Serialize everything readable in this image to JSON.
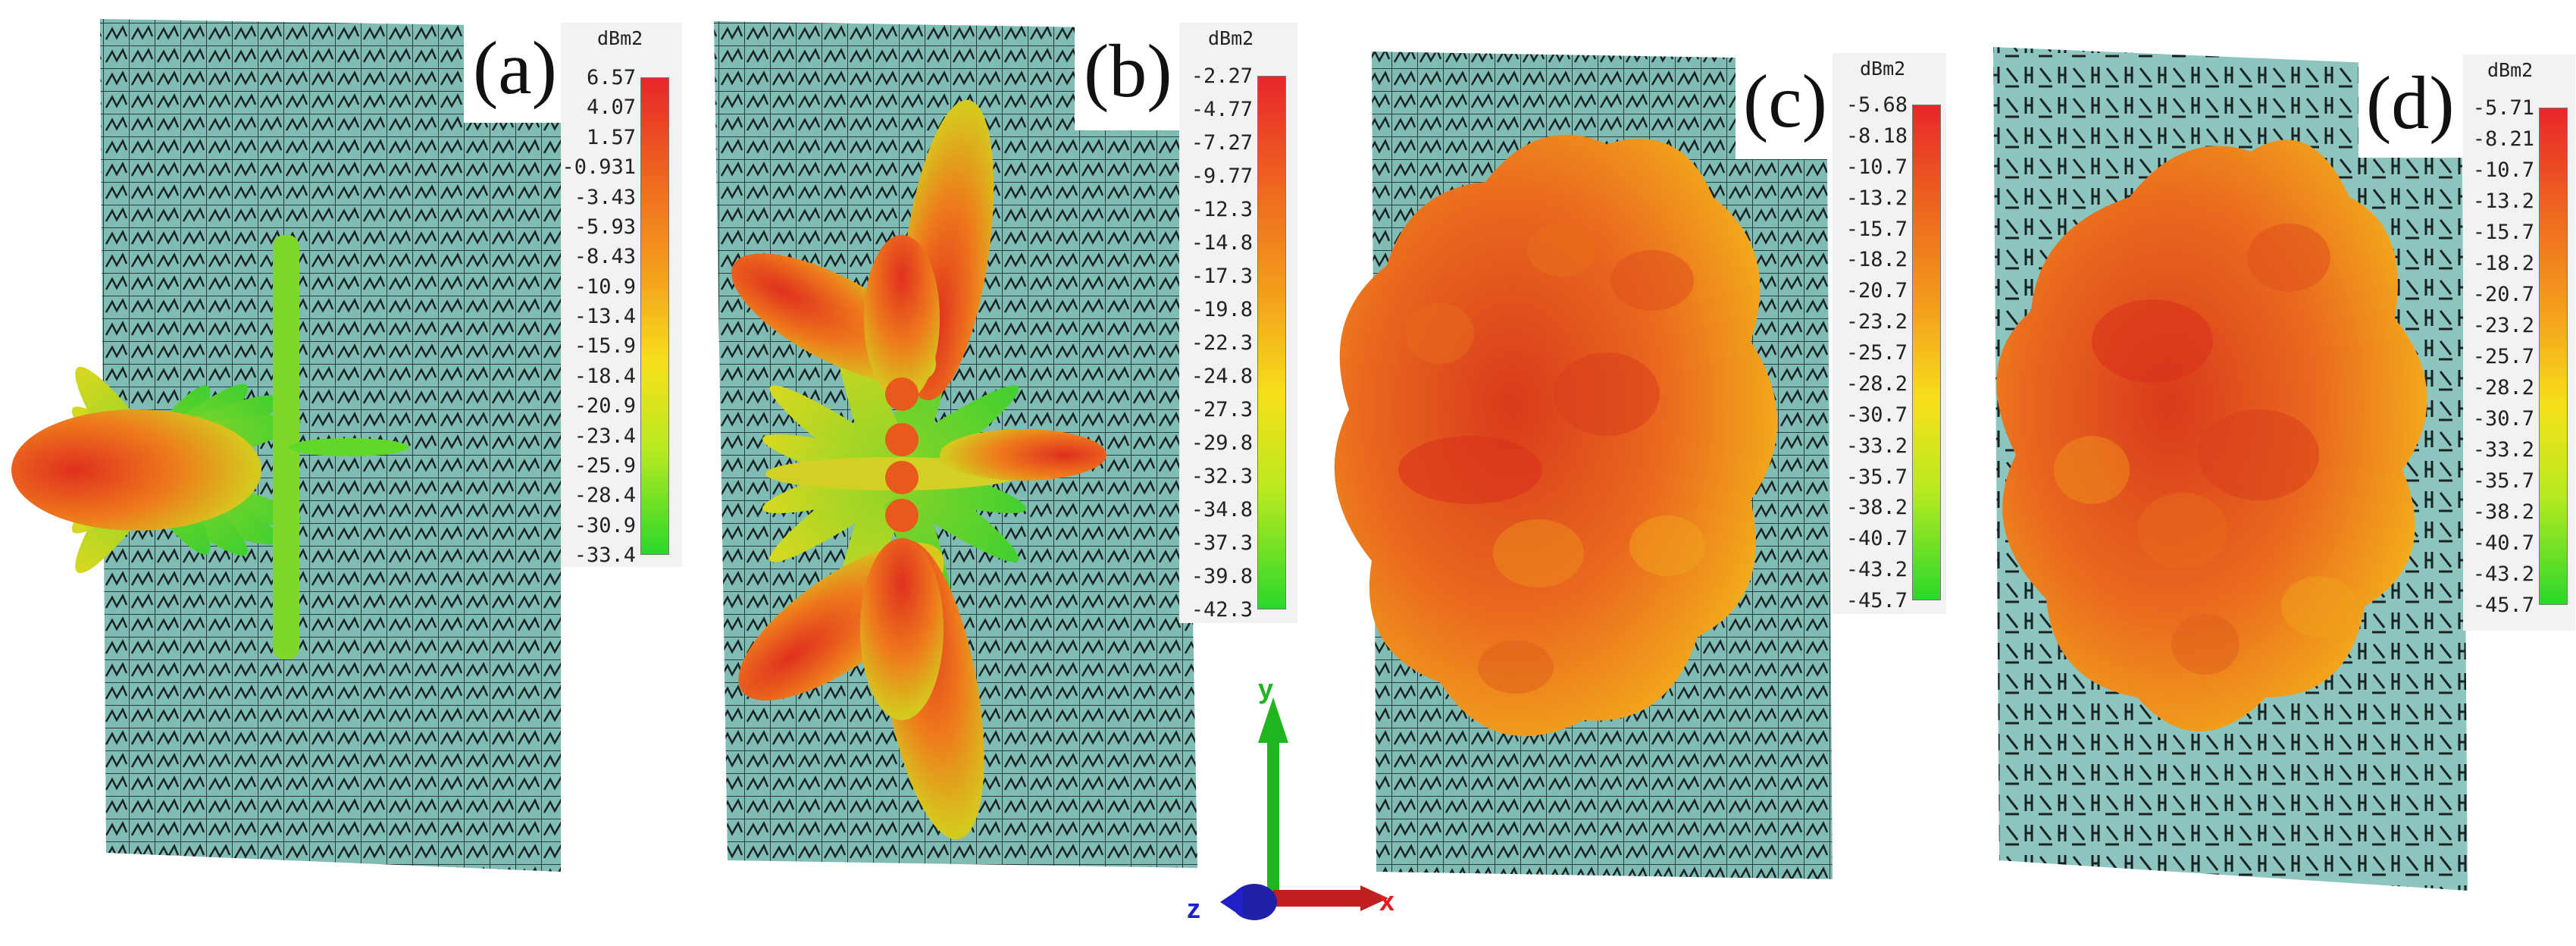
{
  "colorbar_unit": "dBm2",
  "panels": [
    {
      "label": "(a)",
      "ticks": [
        "6.57",
        "4.07",
        "1.57",
        "-0.931",
        "-3.43",
        "-5.93",
        "-8.43",
        "-10.9",
        "-13.4",
        "-15.9",
        "-18.4",
        "-20.9",
        "-23.4",
        "-25.9",
        "-28.4",
        "-30.9",
        "-33.4"
      ]
    },
    {
      "label": "(b)",
      "ticks": [
        "-2.27",
        "-4.77",
        "-7.27",
        "-9.77",
        "-12.3",
        "-14.8",
        "-17.3",
        "-19.8",
        "-22.3",
        "-24.8",
        "-27.3",
        "-29.8",
        "-32.3",
        "-34.8",
        "-37.3",
        "-39.8",
        "-42.3"
      ]
    },
    {
      "label": "(c)",
      "ticks": [
        "-5.68",
        "-8.18",
        "-10.7",
        "-13.2",
        "-15.7",
        "-18.2",
        "-20.7",
        "-23.2",
        "-25.7",
        "-28.2",
        "-30.7",
        "-33.2",
        "-35.7",
        "-38.2",
        "-40.7",
        "-43.2",
        "-45.7"
      ]
    },
    {
      "label": "(d)",
      "ticks": [
        "-5.71",
        "-8.21",
        "-10.7",
        "-13.2",
        "-15.7",
        "-18.2",
        "-20.7",
        "-23.2",
        "-25.7",
        "-28.2",
        "-30.7",
        "-33.2",
        "-35.7",
        "-38.2",
        "-40.7",
        "-43.2",
        "-45.7"
      ]
    }
  ],
  "axes": {
    "y": "y",
    "x": "x",
    "z": "z"
  },
  "colors": {
    "surface": "#7fbcb4",
    "grid": "#1e2a2a",
    "lobe_hot": "#e0301e",
    "lobe_mid": "#f2a01c",
    "lobe_cool": "#c8e020",
    "axis_y": "#1fb51f",
    "axis_x": "#e02020",
    "axis_z": "#2020c8"
  }
}
